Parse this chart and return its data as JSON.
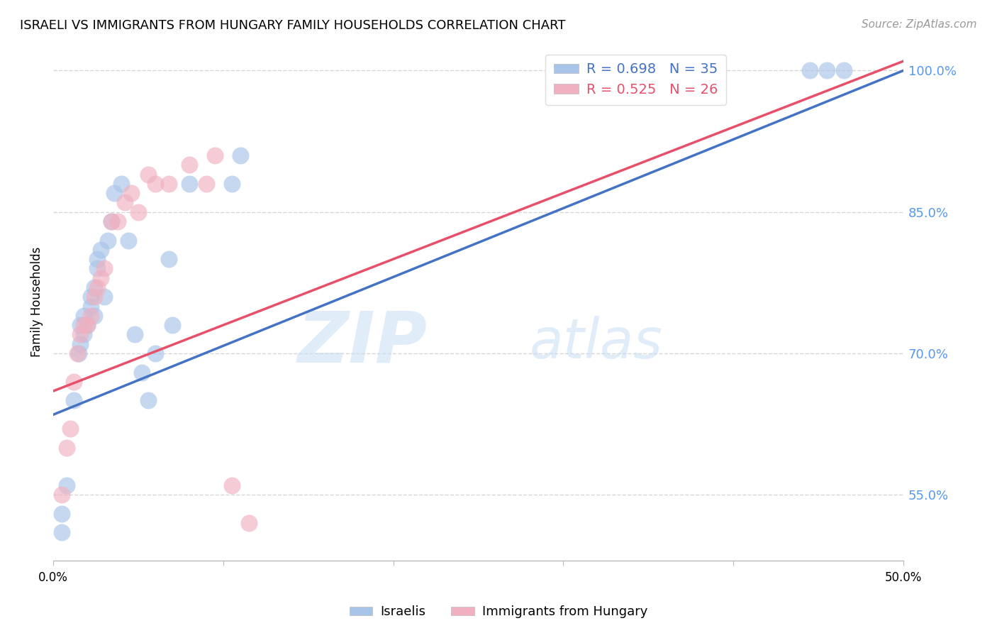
{
  "title": "ISRAELI VS IMMIGRANTS FROM HUNGARY FAMILY HOUSEHOLDS CORRELATION CHART",
  "source": "Source: ZipAtlas.com",
  "ylabel": "Family Households",
  "legend_label_blue": "Israelis",
  "legend_label_pink": "Immigrants from Hungary",
  "r_blue": 0.698,
  "n_blue": 35,
  "r_pink": 0.525,
  "n_pink": 26,
  "xlim": [
    0.0,
    0.5
  ],
  "ylim": [
    0.48,
    1.03
  ],
  "xtick_positions": [
    0.0,
    0.1,
    0.2,
    0.3,
    0.4,
    0.5
  ],
  "xtick_labels_show": [
    "0.0%",
    "",
    "",
    "",
    "",
    "50.0%"
  ],
  "ytick_positions_right": [
    1.0,
    0.85,
    0.7,
    0.55
  ],
  "ytick_labels_right": [
    "100.0%",
    "85.0%",
    "70.0%",
    "55.0%"
  ],
  "blue_scatter_color": "#a8c4e8",
  "pink_scatter_color": "#f0b0c0",
  "blue_line_color": "#4472c4",
  "pink_line_color": "#e8506a",
  "blue_line_x0": 0.0,
  "blue_line_y0": 0.635,
  "blue_line_x1": 0.5,
  "blue_line_y1": 1.0,
  "pink_line_x0": 0.0,
  "pink_line_y0": 0.66,
  "pink_line_x1": 0.5,
  "pink_line_y1": 1.01,
  "blue_x": [
    0.005,
    0.005,
    0.008,
    0.012,
    0.015,
    0.016,
    0.016,
    0.018,
    0.018,
    0.02,
    0.022,
    0.022,
    0.024,
    0.024,
    0.026,
    0.026,
    0.028,
    0.03,
    0.032,
    0.034,
    0.036,
    0.04,
    0.044,
    0.048,
    0.052,
    0.056,
    0.06,
    0.068,
    0.07,
    0.08,
    0.105,
    0.11,
    0.445,
    0.455,
    0.465
  ],
  "blue_y": [
    0.53,
    0.51,
    0.56,
    0.65,
    0.7,
    0.71,
    0.73,
    0.72,
    0.74,
    0.73,
    0.75,
    0.76,
    0.74,
    0.77,
    0.79,
    0.8,
    0.81,
    0.76,
    0.82,
    0.84,
    0.87,
    0.88,
    0.82,
    0.72,
    0.68,
    0.65,
    0.7,
    0.8,
    0.73,
    0.88,
    0.88,
    0.91,
    1.0,
    1.0,
    1.0
  ],
  "pink_x": [
    0.005,
    0.008,
    0.01,
    0.012,
    0.014,
    0.016,
    0.018,
    0.02,
    0.022,
    0.024,
    0.026,
    0.028,
    0.03,
    0.034,
    0.038,
    0.042,
    0.046,
    0.05,
    0.056,
    0.06,
    0.068,
    0.08,
    0.09,
    0.095,
    0.105,
    0.115
  ],
  "pink_y": [
    0.55,
    0.6,
    0.62,
    0.67,
    0.7,
    0.72,
    0.73,
    0.73,
    0.74,
    0.76,
    0.77,
    0.78,
    0.79,
    0.84,
    0.84,
    0.86,
    0.87,
    0.85,
    0.89,
    0.88,
    0.88,
    0.9,
    0.88,
    0.91,
    0.56,
    0.52
  ],
  "watermark_zip": "ZIP",
  "watermark_atlas": "atlas",
  "background_color": "#ffffff",
  "grid_color": "#cccccc",
  "right_axis_color": "#5599ee"
}
